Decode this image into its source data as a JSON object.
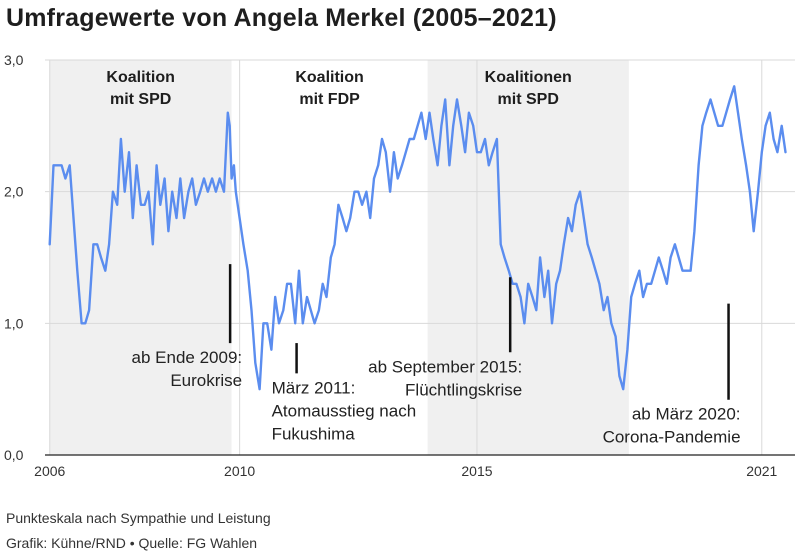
{
  "title": "Umfragewerte von Angela Merkel (2005–2021)",
  "note": "Punkteskala nach Sympathie und Leistung",
  "source": "Grafik: Kühne/RND • Quelle: FG Wahlen",
  "colors": {
    "line": "#5b8def",
    "band": "#f0f0f0",
    "grid": "#d9d9d9",
    "axis": "#222222",
    "annotation": "#111111"
  },
  "chart_data": {
    "type": "line",
    "title": "Umfragewerte von Angela Merkel (2005–2021)",
    "xlabel": "",
    "ylabel": "",
    "xlim": [
      2005.9,
      2021.7
    ],
    "ylim": [
      0,
      3
    ],
    "y_ticks": [
      0,
      1,
      2,
      3
    ],
    "y_tick_labels": [
      "0,0",
      "1,0",
      "2,0",
      "3,0"
    ],
    "x_ticks": [
      2006,
      2010,
      2015,
      2021
    ],
    "x_tick_labels": [
      "2006",
      "2010",
      "2015",
      "2021"
    ],
    "grid": true,
    "bands": [
      {
        "from": 2006.0,
        "to": 2009.83,
        "label": [
          "Koalition",
          "mit SPD"
        ],
        "shaded": true
      },
      {
        "from": 2009.83,
        "to": 2013.96,
        "label": [
          "Koalition",
          "mit FDP"
        ],
        "shaded": false
      },
      {
        "from": 2013.96,
        "to": 2018.2,
        "label": [
          "Koalitionen",
          "mit SPD"
        ],
        "shaded": true
      }
    ],
    "annotations": [
      {
        "x": 2009.8,
        "y_from": 1.45,
        "y_to": 0.85,
        "text": [
          "ab Ende 2009:",
          "Eurokrise"
        ],
        "align": "right"
      },
      {
        "x": 2011.2,
        "y_from": 0.85,
        "y_to": 0.62,
        "text": [
          "März 2011:",
          "Atomausstieg nach",
          "Fukushima"
        ],
        "align": "left"
      },
      {
        "x": 2015.7,
        "y_from": 1.35,
        "y_to": 0.78,
        "text": [
          "ab September 2015:",
          "Flüchtlingskrise"
        ],
        "align": "right"
      },
      {
        "x": 2020.3,
        "y_from": 1.15,
        "y_to": 0.42,
        "text": [
          "ab März 2020:",
          "Corona-Pandemie"
        ],
        "align": "right"
      }
    ],
    "series": [
      {
        "name": "",
        "x": [
          2006.0,
          2006.08,
          2006.17,
          2006.25,
          2006.33,
          2006.42,
          2006.5,
          2006.58,
          2006.67,
          2006.75,
          2006.83,
          2006.92,
          2007.0,
          2007.08,
          2007.17,
          2007.25,
          2007.33,
          2007.42,
          2007.5,
          2007.58,
          2007.67,
          2007.75,
          2007.83,
          2007.92,
          2008.0,
          2008.08,
          2008.17,
          2008.25,
          2008.33,
          2008.42,
          2008.5,
          2008.58,
          2008.67,
          2008.75,
          2008.83,
          2008.92,
          2009.0,
          2009.08,
          2009.17,
          2009.25,
          2009.33,
          2009.42,
          2009.5,
          2009.58,
          2009.67,
          2009.75,
          2009.79,
          2009.83,
          2009.88,
          2009.92,
          2010.0,
          2010.08,
          2010.17,
          2010.25,
          2010.33,
          2010.42,
          2010.5,
          2010.58,
          2010.67,
          2010.75,
          2010.83,
          2010.92,
          2011.0,
          2011.08,
          2011.17,
          2011.25,
          2011.33,
          2011.42,
          2011.5,
          2011.58,
          2011.67,
          2011.75,
          2011.83,
          2011.92,
          2012.0,
          2012.08,
          2012.17,
          2012.25,
          2012.33,
          2012.42,
          2012.5,
          2012.58,
          2012.67,
          2012.75,
          2012.83,
          2012.92,
          2013.0,
          2013.08,
          2013.17,
          2013.25,
          2013.33,
          2013.42,
          2013.5,
          2013.58,
          2013.67,
          2013.75,
          2013.83,
          2013.92,
          2014.0,
          2014.08,
          2014.17,
          2014.25,
          2014.33,
          2014.42,
          2014.5,
          2014.58,
          2014.67,
          2014.75,
          2014.83,
          2014.92,
          2015.0,
          2015.08,
          2015.17,
          2015.25,
          2015.33,
          2015.42,
          2015.5,
          2015.58,
          2015.67,
          2015.75,
          2015.83,
          2015.92,
          2016.0,
          2016.08,
          2016.17,
          2016.25,
          2016.33,
          2016.42,
          2016.5,
          2016.58,
          2016.67,
          2016.75,
          2016.83,
          2016.92,
          2017.0,
          2017.08,
          2017.17,
          2017.25,
          2017.33,
          2017.42,
          2017.5,
          2017.58,
          2017.67,
          2017.75,
          2017.83,
          2017.92,
          2018.0,
          2018.08,
          2018.17,
          2018.25,
          2018.33,
          2018.42,
          2018.5,
          2018.58,
          2018.67,
          2018.75,
          2018.83,
          2018.92,
          2019.0,
          2019.08,
          2019.17,
          2019.25,
          2019.33,
          2019.42,
          2019.5,
          2019.58,
          2019.67,
          2019.75,
          2019.83,
          2019.92,
          2020.0,
          2020.08,
          2020.17,
          2020.25,
          2020.33,
          2020.42,
          2020.5,
          2020.58,
          2020.67,
          2020.75,
          2020.83,
          2020.92,
          2021.0,
          2021.08,
          2021.17,
          2021.25,
          2021.33,
          2021.42,
          2021.5
        ],
        "y": [
          1.6,
          2.2,
          2.2,
          2.2,
          2.1,
          2.2,
          1.8,
          1.4,
          1.0,
          1.0,
          1.1,
          1.6,
          1.6,
          1.5,
          1.4,
          1.6,
          2.0,
          1.9,
          2.4,
          2.0,
          2.3,
          1.8,
          2.2,
          1.9,
          1.9,
          2.0,
          1.6,
          2.2,
          1.9,
          2.1,
          1.7,
          2.0,
          1.8,
          2.1,
          1.8,
          2.0,
          2.1,
          1.9,
          2.0,
          2.1,
          2.0,
          2.1,
          2.0,
          2.1,
          2.0,
          2.6,
          2.5,
          2.1,
          2.2,
          2.0,
          1.8,
          1.6,
          1.4,
          1.1,
          0.7,
          0.5,
          1.0,
          1.0,
          0.8,
          1.2,
          1.0,
          1.1,
          1.3,
          1.3,
          1.0,
          1.4,
          1.0,
          1.2,
          1.1,
          1.0,
          1.1,
          1.3,
          1.2,
          1.5,
          1.6,
          1.9,
          1.8,
          1.7,
          1.8,
          2.0,
          2.0,
          1.9,
          2.0,
          1.8,
          2.1,
          2.2,
          2.4,
          2.3,
          2.0,
          2.3,
          2.1,
          2.2,
          2.3,
          2.4,
          2.4,
          2.5,
          2.6,
          2.4,
          2.6,
          2.4,
          2.2,
          2.5,
          2.7,
          2.2,
          2.5,
          2.7,
          2.5,
          2.3,
          2.6,
          2.5,
          2.3,
          2.3,
          2.4,
          2.2,
          2.3,
          2.4,
          1.6,
          1.5,
          1.4,
          1.3,
          1.3,
          1.2,
          1.0,
          1.3,
          1.2,
          1.1,
          1.5,
          1.2,
          1.4,
          1.0,
          1.3,
          1.4,
          1.6,
          1.8,
          1.7,
          1.9,
          2.0,
          1.8,
          1.6,
          1.5,
          1.4,
          1.3,
          1.1,
          1.2,
          1.0,
          0.9,
          0.6,
          0.5,
          0.8,
          1.2,
          1.3,
          1.4,
          1.2,
          1.3,
          1.3,
          1.4,
          1.5,
          1.4,
          1.3,
          1.5,
          1.6,
          1.5,
          1.4,
          1.4,
          1.4,
          1.7,
          2.2,
          2.5,
          2.6,
          2.7,
          2.6,
          2.5,
          2.5,
          2.6,
          2.7,
          2.8,
          2.6,
          2.4,
          2.2,
          2.0,
          1.7,
          2.0,
          2.3,
          2.5,
          2.6,
          2.4,
          2.3,
          2.5,
          2.3
        ]
      }
    ]
  }
}
